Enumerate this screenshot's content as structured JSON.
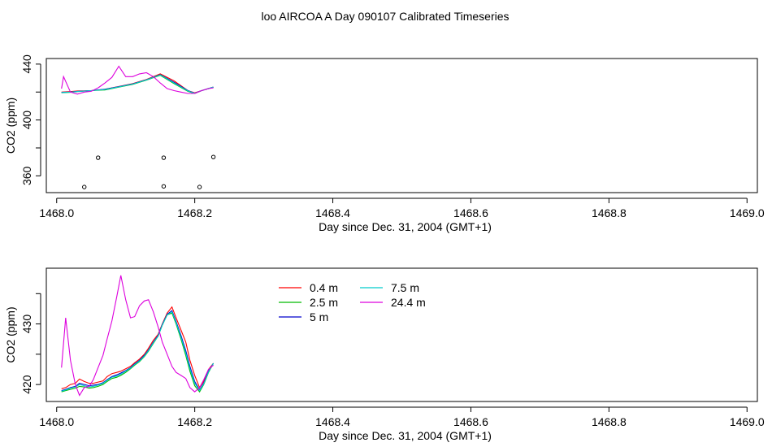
{
  "figure_title": "loo AIRCOA A  Day 090107  Calibrated Timeseries",
  "chart_data": [
    {
      "type": "line",
      "panel": "top",
      "xlabel": "Day since Dec. 31, 2004 (GMT+1)",
      "ylabel": "CO2 (ppm)",
      "xlim": [
        1467.985,
        1469.015
      ],
      "ylim": [
        348,
        444
      ],
      "xticks": [
        1468.0,
        1468.2,
        1468.4,
        1468.6,
        1468.8,
        1469.0
      ],
      "xtick_labels": [
        "1468.0",
        "1468.2",
        "1468.4",
        "1468.6",
        "1468.8",
        "1469.0"
      ],
      "yticks": [
        360,
        380,
        400,
        420,
        440
      ],
      "ytick_labels": [
        "360",
        "",
        "400",
        "",
        "440"
      ],
      "series": [
        {
          "color": "#ff0000",
          "x": [
            1468.007,
            1468.02,
            1468.03,
            1468.05,
            1468.07,
            1468.09,
            1468.11,
            1468.13,
            1468.15,
            1468.17,
            1468.19,
            1468.2,
            1468.21,
            1468.227
          ],
          "y": [
            420,
            420.3,
            420.8,
            421,
            422,
            424,
            426,
            429,
            433,
            428,
            421,
            419.5,
            421,
            423.5
          ]
        },
        {
          "color": "#00bb00",
          "x": [
            1468.007,
            1468.02,
            1468.03,
            1468.05,
            1468.07,
            1468.09,
            1468.11,
            1468.13,
            1468.15,
            1468.17,
            1468.19,
            1468.2,
            1468.21,
            1468.227
          ],
          "y": [
            419.5,
            419.8,
            420.3,
            421,
            421.5,
            423.5,
            425.5,
            428.5,
            432,
            426,
            420.5,
            419,
            421,
            423.5
          ]
        },
        {
          "color": "#0000cc",
          "x": [
            1468.007,
            1468.02,
            1468.03,
            1468.05,
            1468.07,
            1468.09,
            1468.11,
            1468.13,
            1468.15,
            1468.17,
            1468.19,
            1468.2,
            1468.21,
            1468.227
          ],
          "y": [
            419.8,
            420,
            420.5,
            421,
            422,
            423.8,
            425.8,
            428.8,
            432.5,
            427,
            421,
            419.2,
            421,
            423.5
          ]
        },
        {
          "color": "#00cccc",
          "x": [
            1468.007,
            1468.02,
            1468.03,
            1468.05,
            1468.07,
            1468.09,
            1468.11,
            1468.13,
            1468.15,
            1468.17,
            1468.19,
            1468.2,
            1468.21,
            1468.227
          ],
          "y": [
            419.7,
            419.9,
            420.4,
            421,
            421.8,
            423.7,
            425.7,
            428.7,
            432.3,
            426.5,
            420.8,
            419.1,
            421,
            423.5
          ]
        },
        {
          "color": "#dd00dd",
          "x": [
            1468.007,
            1468.01,
            1468.02,
            1468.03,
            1468.04,
            1468.05,
            1468.06,
            1468.07,
            1468.08,
            1468.09,
            1468.1,
            1468.11,
            1468.12,
            1468.13,
            1468.14,
            1468.15,
            1468.16,
            1468.17,
            1468.18,
            1468.19,
            1468.2,
            1468.21,
            1468.22,
            1468.227
          ],
          "y": [
            422.5,
            431,
            420,
            418.5,
            420,
            420.5,
            423,
            426.5,
            430.5,
            438.5,
            431,
            431,
            433,
            433.8,
            431,
            426.5,
            422.5,
            421,
            420,
            419,
            419,
            421,
            422.5,
            423
          ]
        }
      ],
      "points": {
        "x": [
          1468.04,
          1468.06,
          1468.155,
          1468.155,
          1468.207,
          1468.227
        ],
        "y": [
          352,
          373,
          352.5,
          373,
          352,
          373.5
        ]
      }
    },
    {
      "type": "line",
      "panel": "bottom",
      "xlabel": "Day since Dec. 31, 2004 (GMT+1)",
      "ylabel": "CO2 (ppm)",
      "xlim": [
        1467.985,
        1469.015
      ],
      "ylim": [
        417.2,
        439.2
      ],
      "xticks": [
        1468.0,
        1468.2,
        1468.4,
        1468.6,
        1468.8,
        1469.0
      ],
      "xtick_labels": [
        "1468.0",
        "1468.2",
        "1468.4",
        "1468.6",
        "1468.8",
        "1469.0"
      ],
      "yticks": [
        420,
        425,
        430,
        435
      ],
      "ytick_labels": [
        "420",
        "",
        "430",
        ""
      ],
      "legend": {
        "entries": [
          {
            "label": "0.4 m",
            "color": "#ff0000"
          },
          {
            "label": "2.5 m",
            "color": "#00bb00"
          },
          {
            "label": "5 m",
            "color": "#0000cc"
          },
          {
            "label": "7.5 m",
            "color": "#00cccc"
          },
          {
            "label": "24.4 m",
            "color": "#dd00dd"
          }
        ],
        "placement": "top-left-center",
        "columns": 2
      },
      "series": [
        {
          "name": "0.4 m",
          "color": "#ff0000",
          "x": [
            1468.007,
            1468.013,
            1468.02,
            1468.027,
            1468.033,
            1468.04,
            1468.047,
            1468.053,
            1468.06,
            1468.067,
            1468.073,
            1468.08,
            1468.087,
            1468.093,
            1468.1,
            1468.107,
            1468.113,
            1468.12,
            1468.127,
            1468.133,
            1468.14,
            1468.147,
            1468.153,
            1468.16,
            1468.167,
            1468.173,
            1468.18,
            1468.187,
            1468.193,
            1468.2,
            1468.207,
            1468.213,
            1468.22,
            1468.227
          ],
          "y": [
            419.3,
            419.5,
            420.0,
            420.2,
            420.9,
            420.5,
            420.2,
            420.2,
            420.4,
            420.6,
            421.3,
            421.8,
            422.0,
            422.2,
            422.6,
            423.0,
            423.6,
            424.2,
            425.0,
            426.0,
            427.3,
            428.3,
            430.0,
            431.8,
            432.8,
            431.0,
            429.0,
            427.0,
            424.0,
            421.5,
            419.5,
            420.5,
            422.5,
            423.5
          ]
        },
        {
          "name": "2.5 m",
          "color": "#00bb00",
          "x": [
            1468.007,
            1468.013,
            1468.02,
            1468.027,
            1468.033,
            1468.04,
            1468.047,
            1468.053,
            1468.06,
            1468.067,
            1468.073,
            1468.08,
            1468.087,
            1468.093,
            1468.1,
            1468.107,
            1468.113,
            1468.12,
            1468.127,
            1468.133,
            1468.14,
            1468.147,
            1468.153,
            1468.16,
            1468.167,
            1468.173,
            1468.18,
            1468.187,
            1468.193,
            1468.2,
            1468.207,
            1468.213,
            1468.22,
            1468.227
          ],
          "y": [
            418.8,
            419.0,
            419.2,
            419.4,
            419.7,
            419.6,
            419.4,
            419.5,
            419.7,
            420.0,
            420.5,
            421.0,
            421.2,
            421.5,
            422.0,
            422.6,
            423.2,
            423.8,
            424.6,
            425.5,
            426.8,
            428.0,
            429.8,
            431.5,
            431.8,
            430.0,
            427.5,
            424.8,
            422.2,
            419.8,
            418.8,
            420.0,
            422.0,
            423.5
          ]
        },
        {
          "name": "5 m",
          "color": "#0000cc",
          "x": [
            1468.007,
            1468.013,
            1468.02,
            1468.027,
            1468.033,
            1468.04,
            1468.047,
            1468.053,
            1468.06,
            1468.067,
            1468.073,
            1468.08,
            1468.087,
            1468.093,
            1468.1,
            1468.107,
            1468.113,
            1468.12,
            1468.127,
            1468.133,
            1468.14,
            1468.147,
            1468.153,
            1468.16,
            1468.167,
            1468.173,
            1468.18,
            1468.187,
            1468.193,
            1468.2,
            1468.207,
            1468.213,
            1468.22,
            1468.227
          ],
          "y": [
            419.0,
            419.2,
            419.5,
            419.7,
            420.2,
            420.0,
            419.8,
            419.9,
            420.0,
            420.3,
            420.8,
            421.3,
            421.6,
            421.9,
            422.3,
            422.8,
            423.4,
            424.0,
            424.8,
            425.7,
            427.0,
            428.1,
            429.9,
            431.6,
            432.2,
            430.4,
            428.1,
            425.6,
            423.0,
            420.5,
            419.1,
            420.2,
            422.2,
            423.5
          ]
        },
        {
          "name": "7.5 m",
          "color": "#00cccc",
          "x": [
            1468.007,
            1468.013,
            1468.02,
            1468.027,
            1468.033,
            1468.04,
            1468.047,
            1468.053,
            1468.06,
            1468.067,
            1468.073,
            1468.08,
            1468.087,
            1468.093,
            1468.1,
            1468.107,
            1468.113,
            1468.12,
            1468.127,
            1468.133,
            1468.14,
            1468.147,
            1468.153,
            1468.16,
            1468.167,
            1468.173,
            1468.18,
            1468.187,
            1468.193,
            1468.2,
            1468.207,
            1468.213,
            1468.22,
            1468.227
          ],
          "y": [
            418.9,
            419.1,
            419.4,
            419.6,
            420.0,
            419.8,
            419.6,
            419.7,
            419.9,
            420.2,
            420.7,
            421.2,
            421.4,
            421.7,
            422.2,
            422.7,
            423.3,
            423.9,
            424.7,
            425.6,
            426.9,
            428.0,
            429.8,
            431.5,
            432.0,
            430.2,
            427.8,
            425.2,
            422.6,
            420.2,
            419.0,
            420.1,
            422.1,
            423.5
          ]
        },
        {
          "name": "24.4 m",
          "color": "#dd00dd",
          "x": [
            1468.007,
            1468.013,
            1468.02,
            1468.027,
            1468.033,
            1468.04,
            1468.047,
            1468.053,
            1468.06,
            1468.067,
            1468.073,
            1468.08,
            1468.087,
            1468.093,
            1468.1,
            1468.107,
            1468.113,
            1468.12,
            1468.127,
            1468.133,
            1468.14,
            1468.147,
            1468.153,
            1468.16,
            1468.167,
            1468.173,
            1468.18,
            1468.187,
            1468.193,
            1468.2,
            1468.207,
            1468.213,
            1468.22,
            1468.227
          ],
          "y": [
            422.8,
            431.0,
            424.0,
            420.0,
            418.2,
            419.5,
            419.7,
            420.8,
            422.8,
            424.8,
            427.5,
            430.5,
            434.5,
            438.0,
            434.0,
            431.0,
            431.2,
            433.0,
            433.8,
            434.0,
            432.0,
            429.5,
            427.0,
            425.0,
            423.0,
            422.0,
            421.5,
            421.0,
            419.5,
            418.8,
            419.5,
            420.8,
            422.5,
            423.2
          ]
        }
      ]
    }
  ]
}
